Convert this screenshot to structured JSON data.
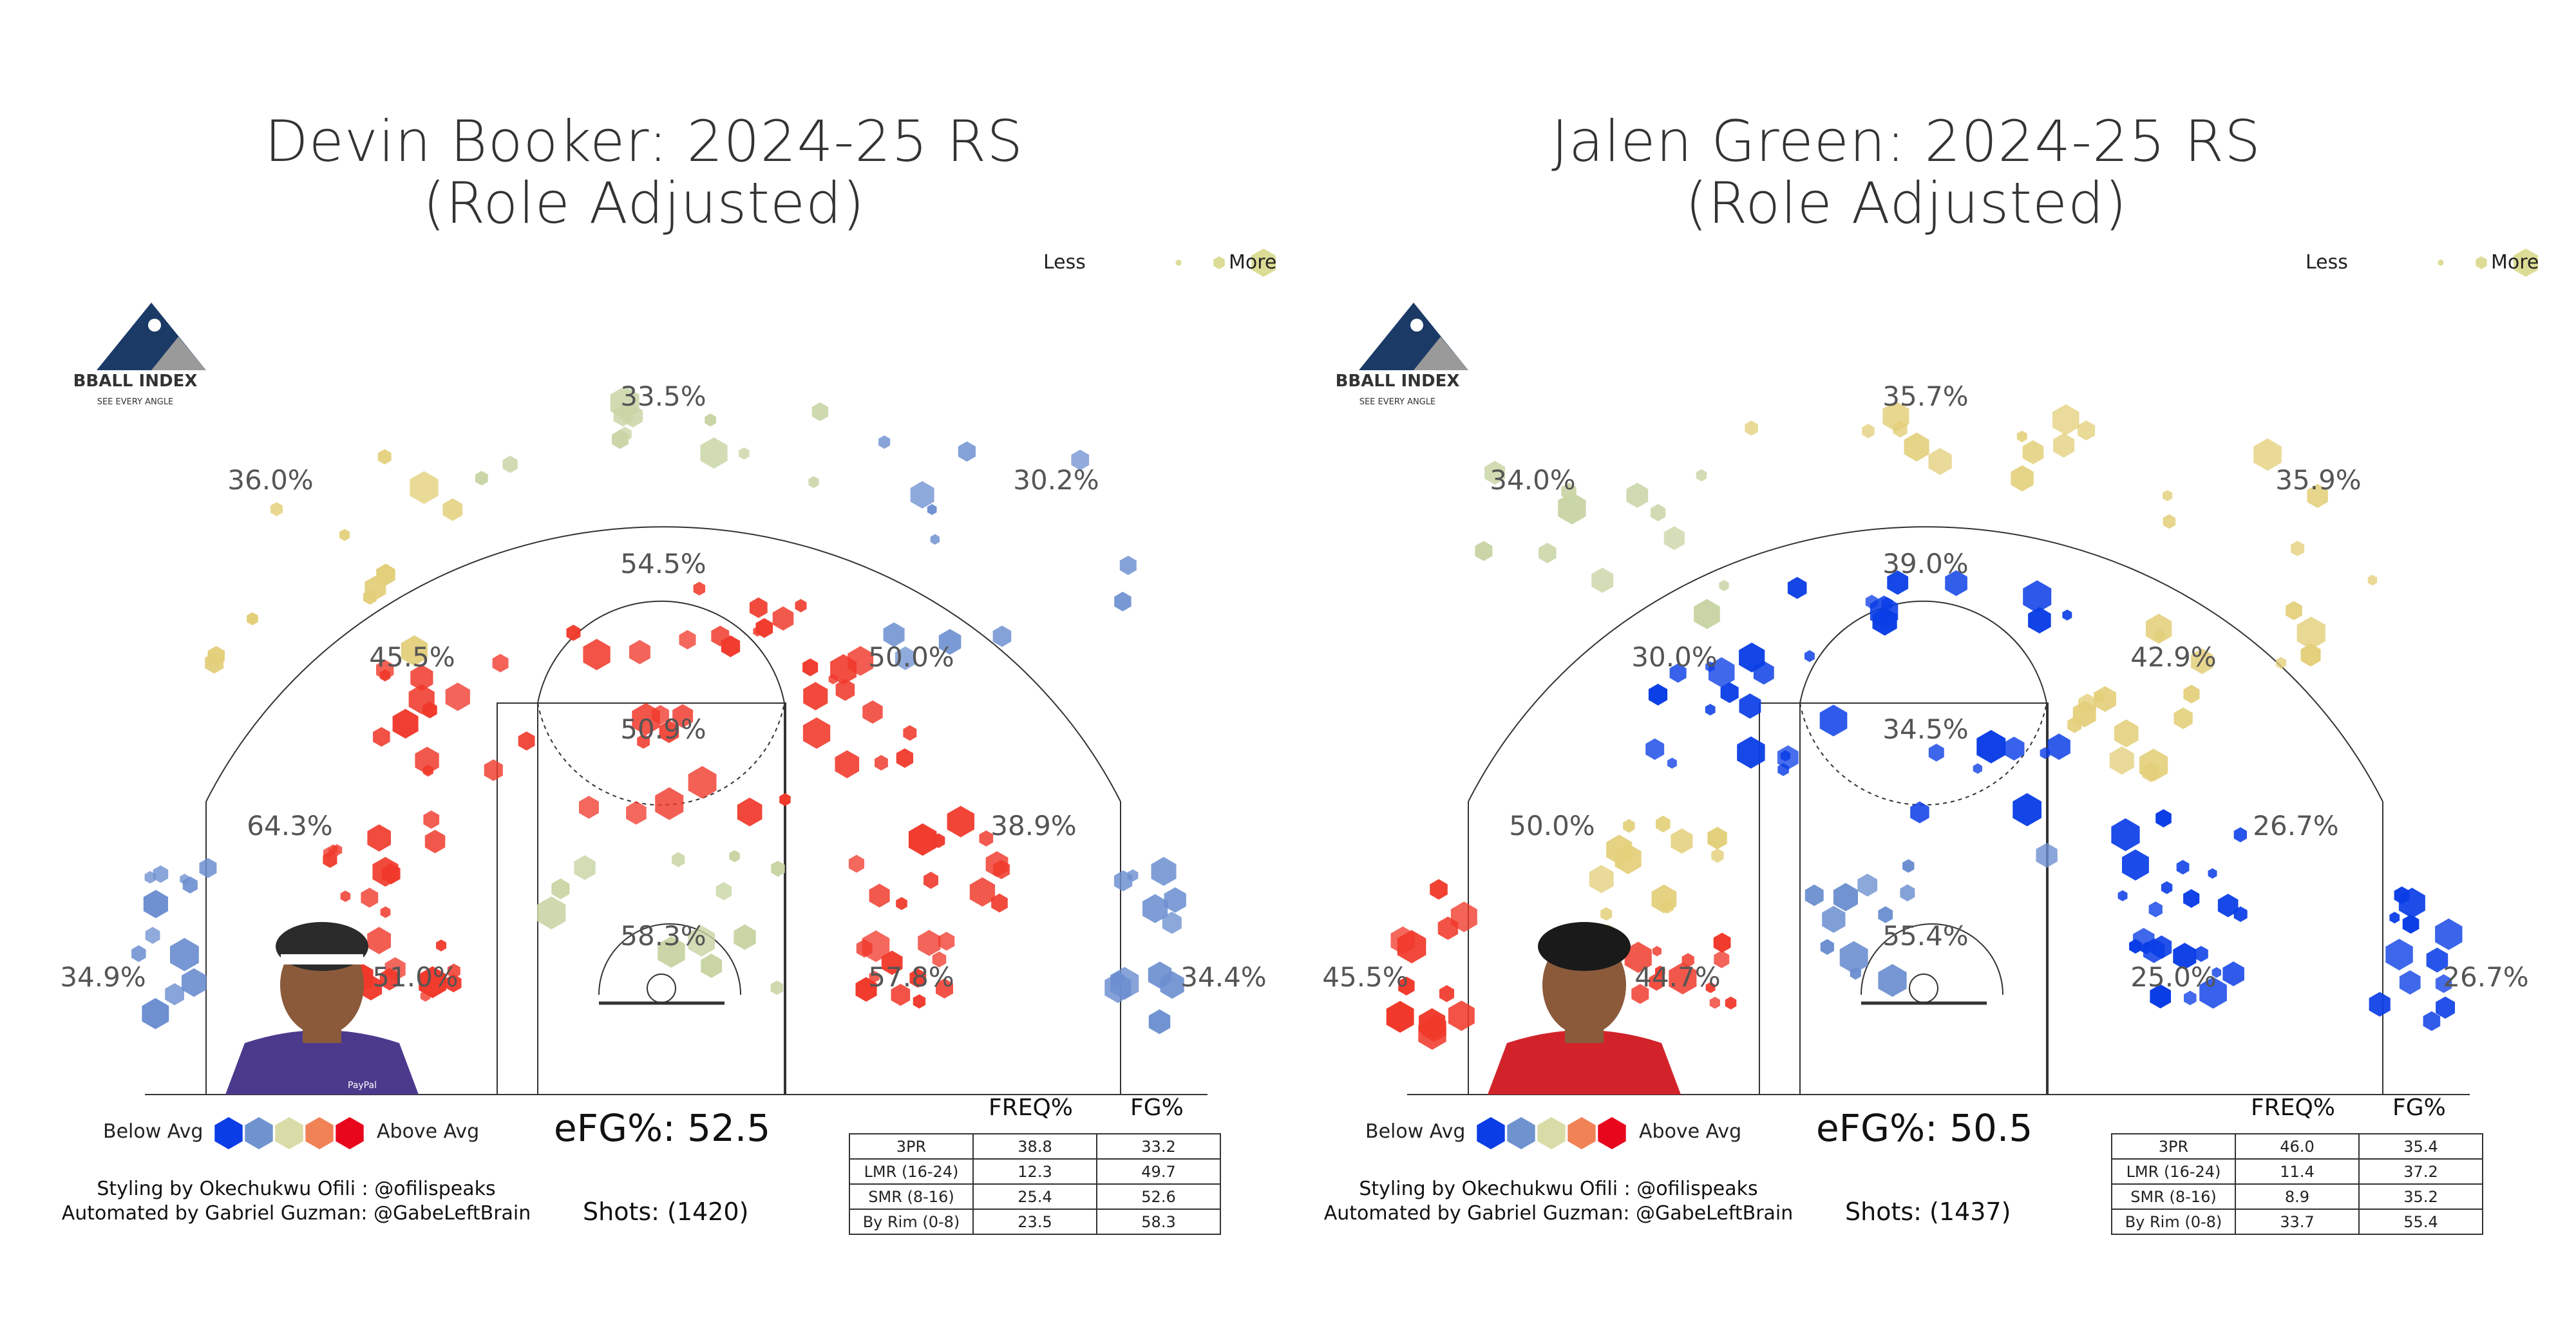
{
  "size_legend": {
    "less": "Less",
    "more": "More"
  },
  "color_legend": {
    "below": "Below Avg",
    "above": "Above Avg",
    "colors": [
      "#0a3de6",
      "#6f93cf",
      "#d9dca6",
      "#f08256",
      "#e8061d"
    ]
  },
  "colors": {
    "cold": "#6c8fd0",
    "deep_cold": "#0a3de6",
    "neutral": "#c8d4a4",
    "warm": "#e3cf7a",
    "hot": "#f0392b",
    "deep_hot": "#e8061d"
  },
  "logo": {
    "text": "BBALL INDEX",
    "tagline": "SEE EVERY ANGLE"
  },
  "credits": {
    "line1": "Styling by Okechukwu Ofili : @ofilispeaks",
    "line2": "Automated by Gabriel Guzman: @GabeLeftBrain"
  },
  "table_headers": {
    "freq": "FREQ%",
    "fg": "FG%"
  },
  "chart_data": [
    {
      "type": "hexbin",
      "title": "Devin Booker: 2024-25 RS",
      "subtitle": "(Role Adjusted)",
      "efg_label": "eFG%: 52.5",
      "shots_label": "Shots: (1420)",
      "zones": [
        {
          "zone": "above-break-3-center",
          "fg": "33.5%"
        },
        {
          "zone": "above-break-3-left",
          "fg": "36.0%"
        },
        {
          "zone": "above-break-3-right",
          "fg": "30.2%"
        },
        {
          "zone": "long-mid-top",
          "fg": "54.5%"
        },
        {
          "zone": "long-mid-left-wing",
          "fg": "45.5%"
        },
        {
          "zone": "long-mid-right-wing",
          "fg": "50.0%"
        },
        {
          "zone": "paint-upper",
          "fg": "50.9%"
        },
        {
          "zone": "mid-left-baseline",
          "fg": "64.3%"
        },
        {
          "zone": "mid-right-baseline",
          "fg": "38.9%"
        },
        {
          "zone": "rim",
          "fg": "58.3%"
        },
        {
          "zone": "corner-3-left",
          "fg": "34.9%"
        },
        {
          "zone": "short-mid-left",
          "fg": "51.0%"
        },
        {
          "zone": "short-mid-right",
          "fg": "57.8%"
        },
        {
          "zone": "corner-3-right",
          "fg": "34.4%"
        }
      ],
      "zone_colors": {
        "above-break-3-center": "neutral",
        "above-break-3-left": "warm",
        "above-break-3-right": "cold",
        "long-mid-top": "hot",
        "long-mid-left-wing": "hot",
        "long-mid-right-wing": "hot",
        "paint-upper": "hot",
        "mid-left-baseline": "hot",
        "mid-right-baseline": "hot",
        "rim": "neutral",
        "corner-3-left": "cold",
        "short-mid-left": "hot",
        "short-mid-right": "hot",
        "corner-3-right": "cold"
      },
      "table": [
        {
          "label": "3PR",
          "freq": "38.8",
          "fg": "33.2"
        },
        {
          "label": "LMR (16-24)",
          "freq": "12.3",
          "fg": "49.7"
        },
        {
          "label": "SMR (8-16)",
          "freq": "25.4",
          "fg": "52.6"
        },
        {
          "label": "By Rim (0-8)",
          "freq": "23.5",
          "fg": "58.3"
        }
      ],
      "jersey_color": "#4b3a8c",
      "jersey_text": "PayPal"
    },
    {
      "type": "hexbin",
      "title": "Jalen Green: 2024-25 RS",
      "subtitle": "(Role Adjusted)",
      "efg_label": "eFG%: 50.5",
      "shots_label": "Shots: (1437)",
      "zones": [
        {
          "zone": "above-break-3-center",
          "fg": "35.7%"
        },
        {
          "zone": "above-break-3-left",
          "fg": "34.0%"
        },
        {
          "zone": "above-break-3-right",
          "fg": "35.9%"
        },
        {
          "zone": "long-mid-top",
          "fg": "39.0%"
        },
        {
          "zone": "long-mid-left-wing",
          "fg": "30.0%"
        },
        {
          "zone": "long-mid-right-wing",
          "fg": "42.9%"
        },
        {
          "zone": "paint-upper",
          "fg": "34.5%"
        },
        {
          "zone": "mid-left-baseline",
          "fg": "50.0%"
        },
        {
          "zone": "mid-right-baseline",
          "fg": "26.7%"
        },
        {
          "zone": "rim",
          "fg": "55.4%"
        },
        {
          "zone": "corner-3-left",
          "fg": "45.5%"
        },
        {
          "zone": "short-mid-left",
          "fg": "44.7%"
        },
        {
          "zone": "short-mid-right",
          "fg": "25.0%"
        },
        {
          "zone": "corner-3-right",
          "fg": "26.7%"
        }
      ],
      "zone_colors": {
        "above-break-3-center": "warm",
        "above-break-3-left": "neutral",
        "above-break-3-right": "warm",
        "long-mid-top": "deep_cold",
        "long-mid-left-wing": "deep_cold",
        "long-mid-right-wing": "warm",
        "paint-upper": "deep_cold",
        "mid-left-baseline": "warm",
        "mid-right-baseline": "deep_cold",
        "rim": "cold",
        "corner-3-left": "hot",
        "short-mid-left": "hot",
        "short-mid-right": "deep_cold",
        "corner-3-right": "deep_cold"
      },
      "table": [
        {
          "label": "3PR",
          "freq": "46.0",
          "fg": "35.4"
        },
        {
          "label": "LMR (16-24)",
          "freq": "11.4",
          "fg": "37.2"
        },
        {
          "label": "SMR (8-16)",
          "freq": "8.9",
          "fg": "35.2"
        },
        {
          "label": "By Rim (0-8)",
          "freq": "33.7",
          "fg": "55.4"
        }
      ],
      "jersey_color": "#d2232a",
      "jersey_text": ""
    }
  ]
}
